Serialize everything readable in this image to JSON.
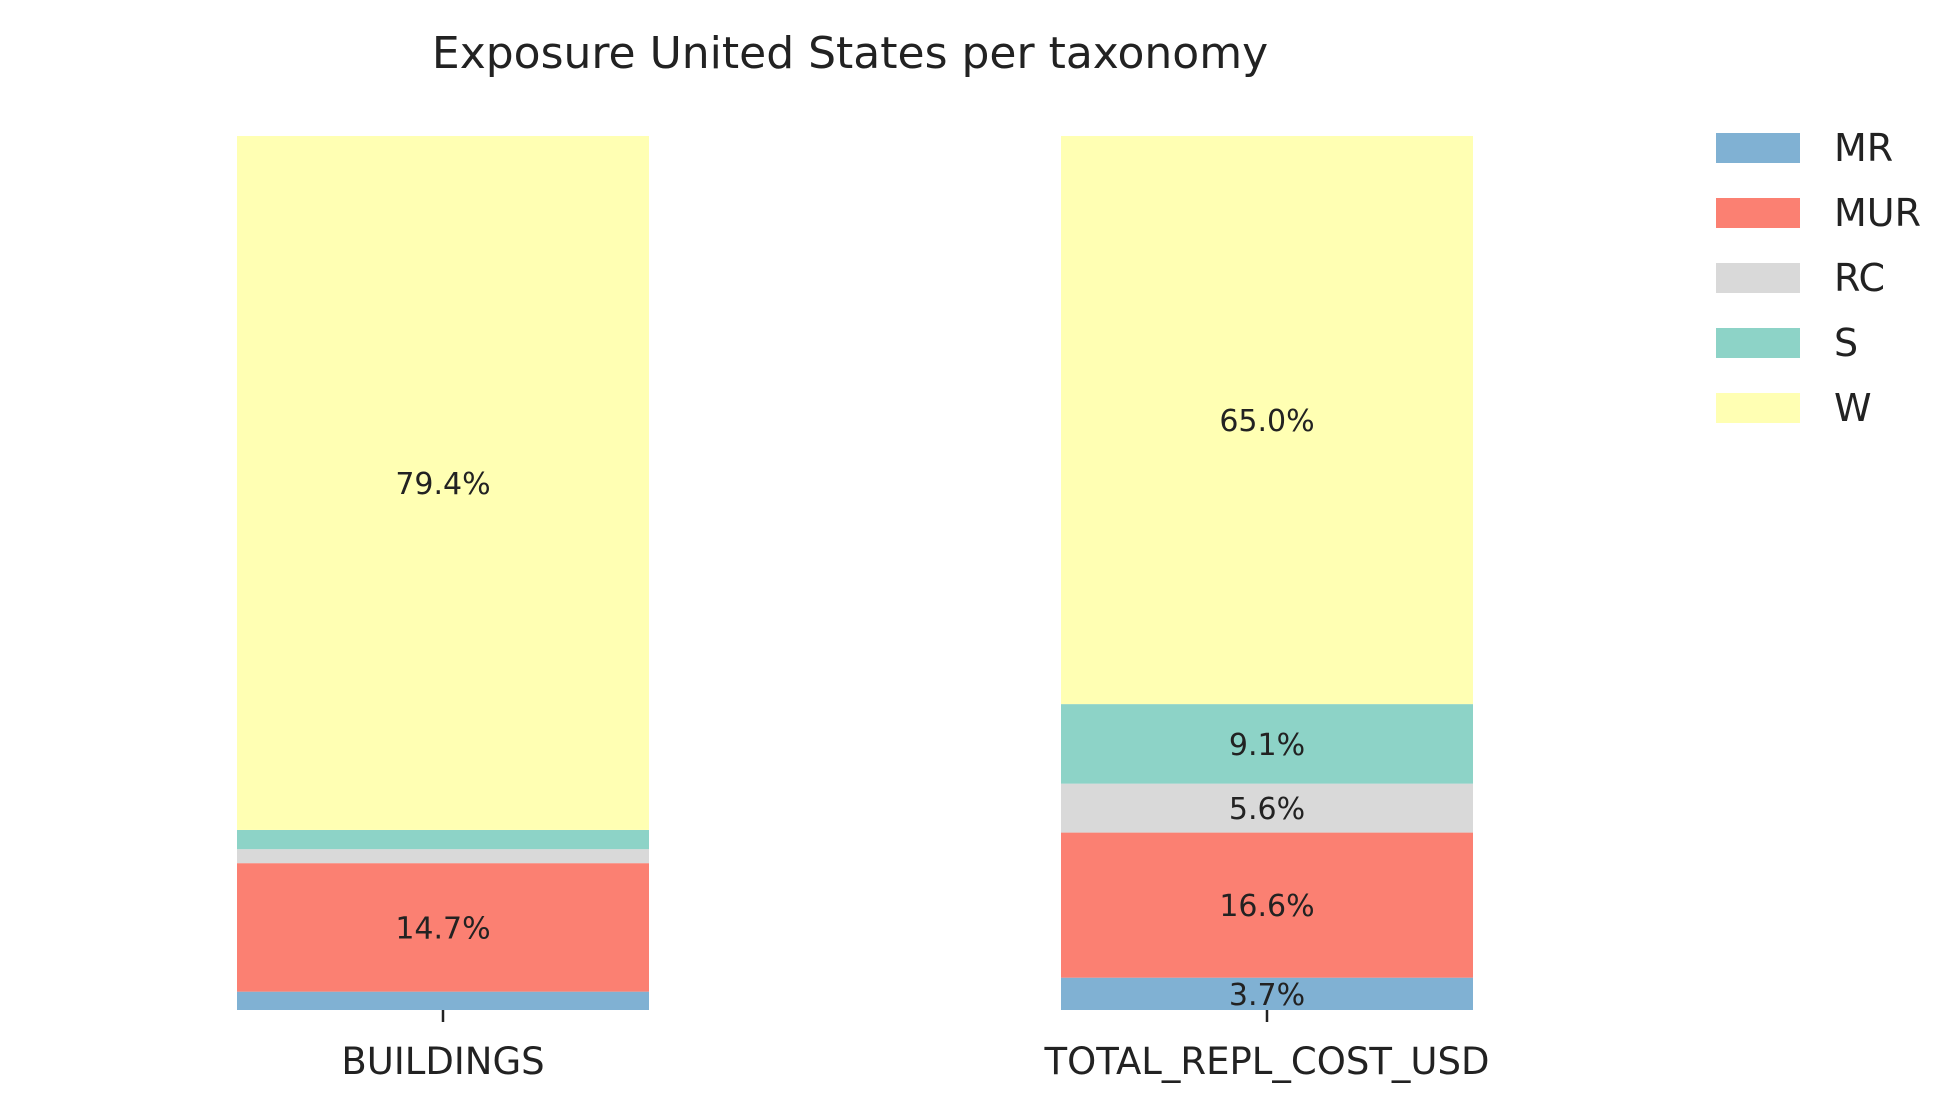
{
  "chart_data": {
    "type": "bar",
    "stacked": true,
    "normalized": true,
    "title": "Exposure United States per taxonomy",
    "categories": [
      "BUILDINGS",
      "TOTAL_REPL_COST_USD"
    ],
    "series": [
      {
        "name": "MR",
        "color": "#80b1d3",
        "values": [
          2.1,
          3.7
        ],
        "labels": [
          "",
          "3.7%"
        ]
      },
      {
        "name": "MUR",
        "color": "#fb8072",
        "values": [
          14.7,
          16.6
        ],
        "labels": [
          "14.7%",
          "16.6%"
        ]
      },
      {
        "name": "RC",
        "color": "#d9d9d9",
        "values": [
          1.6,
          5.6
        ],
        "labels": [
          "",
          "5.6%"
        ]
      },
      {
        "name": "S",
        "color": "#8dd3c7",
        "values": [
          2.2,
          9.1
        ],
        "labels": [
          "",
          "9.1%"
        ]
      },
      {
        "name": "W",
        "color": "#ffffb3",
        "values": [
          79.4,
          65.0
        ],
        "labels": [
          "79.4%",
          "65.0%"
        ]
      }
    ],
    "ylim": [
      0,
      100
    ],
    "grid": false,
    "legend": "right"
  }
}
